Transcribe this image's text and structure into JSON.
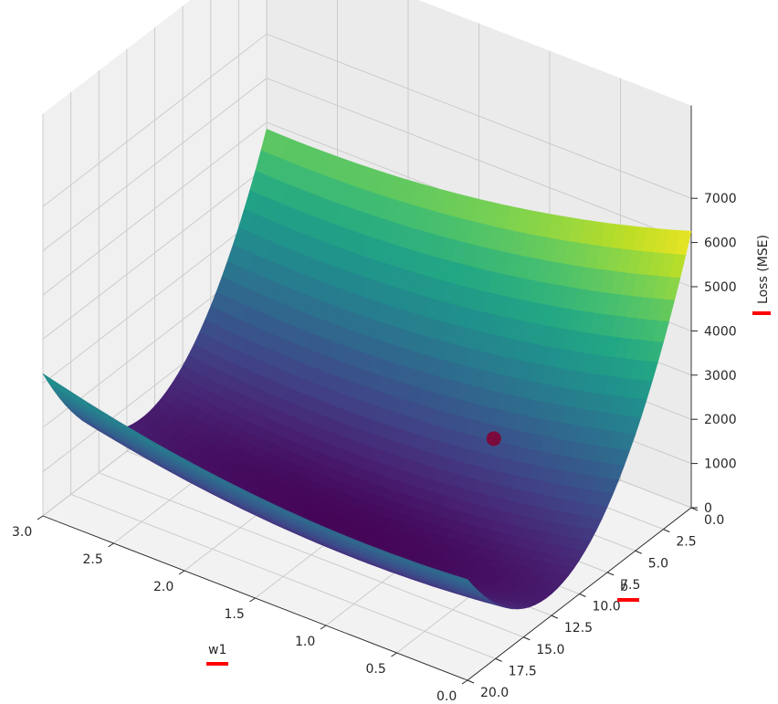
{
  "chart_data": {
    "type": "surface3d",
    "colormap": "viridis",
    "axes": {
      "x": {
        "label": "w1",
        "range": [
          0.0,
          3.0
        ],
        "ticks": [
          "0.0",
          "0.5",
          "1.0",
          "1.5",
          "2.0",
          "2.5",
          "3.0"
        ],
        "tick_values": [
          0.0,
          0.5,
          1.0,
          1.5,
          2.0,
          2.5,
          3.0
        ]
      },
      "y": {
        "label": "b",
        "range": [
          0.0,
          20.0
        ],
        "ticks": [
          "0.0",
          "2.5",
          "5.0",
          "7.5",
          "10.0",
          "12.5",
          "15.0",
          "17.5",
          "20.0"
        ],
        "tick_values": [
          0.0,
          2.5,
          5.0,
          7.5,
          10.0,
          12.5,
          15.0,
          17.5,
          20.0
        ]
      },
      "z": {
        "label": "Loss (MSE)",
        "range": [
          0,
          7000
        ],
        "ticks": [
          "0",
          "1000",
          "2000",
          "3000",
          "4000",
          "5000",
          "6000",
          "7000"
        ],
        "tick_values": [
          0,
          1000,
          2000,
          3000,
          4000,
          5000,
          6000,
          7000
        ]
      }
    },
    "surface": {
      "corners": [
        {
          "w1": 3.0,
          "b": 0.0,
          "loss": 4700
        },
        {
          "w1": 3.0,
          "b": 20.0,
          "loss": 3000
        },
        {
          "w1": 0.0,
          "b": 0.0,
          "loss": 6400
        },
        {
          "w1": 0.0,
          "b": 20.0,
          "loss": 2500
        }
      ],
      "minimum": {
        "w1": 1.5,
        "b": 12.0,
        "loss": 80
      }
    },
    "marked_point": {
      "w1": 1.0,
      "b": 5.0,
      "loss": 1300,
      "color": "#7a0a3c"
    },
    "grid": true,
    "annotations": [
      {
        "target": "w1",
        "style": "underline",
        "color": "#ff0000"
      },
      {
        "target": "b",
        "style": "underline",
        "color": "#ff0000"
      },
      {
        "target": "zlabel",
        "style": "underline",
        "color": "#ff0000"
      }
    ]
  }
}
